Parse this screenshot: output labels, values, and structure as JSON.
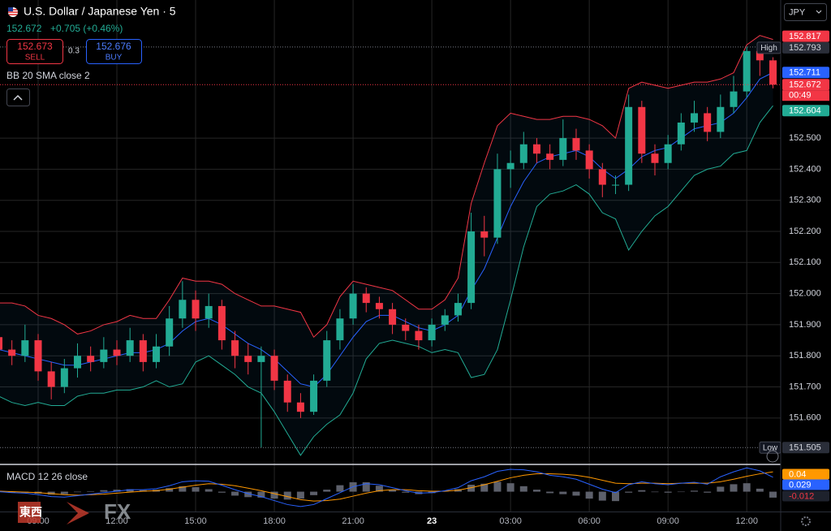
{
  "chart_data": {
    "type": "candlestick",
    "title": "U.S. Dollar / Japanese Yen · 5",
    "change": "+0.705 (+0.46%)",
    "bid": 152.673,
    "bid_label": "SELL",
    "spread": 0.3,
    "ask": 152.676,
    "ask_label": "BUY",
    "currency": "JPY",
    "countdown": "00:49",
    "high_label": "High",
    "low_label": "Low",
    "up_color": "#22ab94",
    "down_color": "#f23645",
    "categories": [
      null,
      null,
      null,
      "09:00",
      null,
      null,
      null,
      null,
      null,
      "12:00",
      null,
      null,
      null,
      null,
      null,
      "15:00",
      null,
      null,
      null,
      null,
      null,
      "18:00",
      null,
      null,
      null,
      null,
      null,
      "21:00",
      null,
      null,
      null,
      null,
      null,
      "23",
      null,
      null,
      null,
      null,
      null,
      "03:00",
      null,
      null,
      null,
      null,
      null,
      "06:00",
      null,
      null,
      null,
      null,
      null,
      "09:00",
      null,
      null,
      null,
      null,
      null,
      "12:00",
      null,
      null
    ],
    "open": [
      151.86,
      151.82,
      151.8,
      151.85,
      151.75,
      151.7,
      151.76,
      151.8,
      151.78,
      151.82,
      151.8,
      151.85,
      151.78,
      151.83,
      151.92,
      151.98,
      151.92,
      151.96,
      151.85,
      151.8,
      151.78,
      151.8,
      151.72,
      151.65,
      151.62,
      151.72,
      151.85,
      151.92,
      152.0,
      151.97,
      151.95,
      151.9,
      151.88,
      151.85,
      151.9,
      151.93,
      151.97,
      152.2,
      152.18,
      152.4,
      152.42,
      152.48,
      152.45,
      152.43,
      152.5,
      152.46,
      152.4,
      152.35,
      152.35,
      152.6,
      152.45,
      152.42,
      152.48,
      152.55,
      152.58,
      152.52,
      152.6,
      152.65,
      152.78,
      152.75
    ],
    "high": [
      151.89,
      151.85,
      151.9,
      151.87,
      151.78,
      151.79,
      151.84,
      151.83,
      151.86,
      151.85,
      151.89,
      151.87,
      151.87,
      151.96,
      152.04,
      152.01,
      152.0,
      151.98,
      151.88,
      151.84,
      151.83,
      151.82,
      151.74,
      151.68,
      151.74,
      151.88,
      151.95,
      152.03,
      152.02,
      151.99,
      151.97,
      151.92,
      151.9,
      151.92,
      151.95,
      152.0,
      152.26,
      152.25,
      152.45,
      152.46,
      152.52,
      152.5,
      152.48,
      152.56,
      152.53,
      152.48,
      152.42,
      152.38,
      152.64,
      152.62,
      152.48,
      152.51,
      152.58,
      152.62,
      152.6,
      152.64,
      152.7,
      152.793,
      152.79,
      152.76
    ],
    "low": [
      151.72,
      151.77,
      151.78,
      151.72,
      151.66,
      151.68,
      151.73,
      151.75,
      151.76,
      151.77,
      151.78,
      151.75,
      151.76,
      151.8,
      151.89,
      151.88,
      151.89,
      151.82,
      151.76,
      151.74,
      151.505,
      151.69,
      151.62,
      151.6,
      151.61,
      151.7,
      151.82,
      151.9,
      151.94,
      151.92,
      151.87,
      151.85,
      151.82,
      151.83,
      151.88,
      151.91,
      151.95,
      152.12,
      152.16,
      152.34,
      152.4,
      152.42,
      152.4,
      152.41,
      152.43,
      152.37,
      152.31,
      152.32,
      152.33,
      152.42,
      152.38,
      152.4,
      152.46,
      152.52,
      152.49,
      152.5,
      152.58,
      152.63,
      152.7,
      152.66
    ],
    "close": [
      151.82,
      151.8,
      151.85,
      151.75,
      151.7,
      151.76,
      151.8,
      151.78,
      151.82,
      151.8,
      151.85,
      151.78,
      151.83,
      151.92,
      151.98,
      151.92,
      151.96,
      151.85,
      151.8,
      151.78,
      151.8,
      151.72,
      151.65,
      151.62,
      151.72,
      151.85,
      151.92,
      152.0,
      151.97,
      151.95,
      151.9,
      151.88,
      151.85,
      151.9,
      151.93,
      151.97,
      152.2,
      152.18,
      152.4,
      152.42,
      152.48,
      152.45,
      152.43,
      152.5,
      152.46,
      152.4,
      152.35,
      152.35,
      152.6,
      152.45,
      152.42,
      152.48,
      152.55,
      152.58,
      152.52,
      152.6,
      152.65,
      152.78,
      152.75,
      152.672
    ],
    "bands": {
      "name": "BB 20 SMA close 2",
      "upper_color": "#f23645",
      "middle_color": "#2962ff",
      "lower_color": "#22ab94",
      "upper": [
        151.97,
        151.97,
        151.96,
        151.93,
        151.92,
        151.9,
        151.87,
        151.88,
        151.9,
        151.91,
        151.93,
        151.92,
        151.92,
        151.98,
        152.05,
        152.04,
        152.04,
        152.03,
        152.0,
        151.98,
        151.96,
        151.96,
        151.95,
        151.94,
        151.86,
        151.9,
        151.99,
        152.04,
        152.03,
        152.02,
        152.01,
        151.98,
        151.95,
        151.95,
        151.98,
        152.05,
        152.29,
        152.42,
        152.54,
        152.58,
        152.57,
        152.56,
        152.56,
        152.57,
        152.57,
        152.56,
        152.54,
        152.5,
        152.66,
        152.68,
        152.67,
        152.66,
        152.67,
        152.68,
        152.68,
        152.69,
        152.71,
        152.8,
        152.83,
        152.817
      ],
      "middle": [
        151.82,
        151.81,
        151.8,
        151.79,
        151.78,
        151.77,
        151.77,
        151.78,
        151.79,
        151.8,
        151.81,
        151.81,
        151.82,
        151.84,
        151.88,
        151.91,
        151.92,
        151.9,
        151.87,
        151.84,
        151.82,
        151.79,
        151.75,
        151.71,
        151.7,
        151.74,
        151.8,
        151.86,
        151.91,
        151.93,
        151.93,
        151.91,
        151.89,
        151.88,
        151.9,
        151.93,
        152.01,
        152.08,
        152.18,
        152.28,
        152.36,
        152.42,
        152.44,
        152.45,
        152.46,
        152.44,
        152.4,
        152.37,
        152.4,
        152.44,
        152.46,
        152.47,
        152.5,
        152.53,
        152.54,
        152.55,
        152.58,
        152.63,
        152.69,
        152.711
      ],
      "lower": [
        151.67,
        151.65,
        151.64,
        151.65,
        151.64,
        151.64,
        151.67,
        151.68,
        151.68,
        151.69,
        151.69,
        151.7,
        151.72,
        151.7,
        151.71,
        151.78,
        151.8,
        151.77,
        151.74,
        151.7,
        151.68,
        151.62,
        151.55,
        151.48,
        151.54,
        151.58,
        151.61,
        151.68,
        151.79,
        151.84,
        151.85,
        151.84,
        151.83,
        151.81,
        151.82,
        151.81,
        151.73,
        151.74,
        151.82,
        151.98,
        152.15,
        152.28,
        152.32,
        152.33,
        152.35,
        152.32,
        152.26,
        152.24,
        152.14,
        152.2,
        152.25,
        152.28,
        152.33,
        152.38,
        152.4,
        152.41,
        152.45,
        152.46,
        152.55,
        152.604
      ]
    },
    "ylim": [
      151.456,
      152.944
    ],
    "yticks": [
      {
        "value": 151.6,
        "label": "151.600"
      },
      {
        "value": 151.7,
        "label": "151.700"
      },
      {
        "value": 151.8,
        "label": "151.800"
      },
      {
        "value": 151.9,
        "label": "151.900"
      },
      {
        "value": 152.0,
        "label": "152.000"
      },
      {
        "value": 152.1,
        "label": "152.100"
      },
      {
        "value": 152.2,
        "label": "152.200"
      },
      {
        "value": 152.3,
        "label": "152.300"
      },
      {
        "value": 152.4,
        "label": "152.400"
      },
      {
        "value": 152.5,
        "label": "152.500"
      }
    ],
    "macd": {
      "name": "MACD 12 26 close",
      "ylim": [
        -0.04,
        0.05
      ],
      "macd_color": "#2962ff",
      "signal_color": "#ff9800",
      "histogram_color": "#5d606b",
      "macd": [
        0.0,
        -0.002,
        -0.003,
        -0.006,
        -0.01,
        -0.011,
        -0.008,
        -0.005,
        -0.002,
        0.001,
        0.004,
        0.004,
        0.006,
        0.012,
        0.02,
        0.022,
        0.021,
        0.013,
        0.004,
        -0.004,
        -0.01,
        -0.018,
        -0.026,
        -0.03,
        -0.026,
        -0.014,
        -0.002,
        0.01,
        0.016,
        0.014,
        0.008,
        0.002,
        -0.003,
        -0.002,
        0.002,
        0.008,
        0.022,
        0.03,
        0.041,
        0.045,
        0.044,
        0.04,
        0.033,
        0.03,
        0.025,
        0.015,
        0.005,
        -0.002,
        0.014,
        0.02,
        0.016,
        0.014,
        0.017,
        0.019,
        0.015,
        0.03,
        0.04,
        0.048,
        0.042,
        0.029
      ],
      "signal": [
        0.001,
        0.0,
        -0.001,
        -0.002,
        -0.004,
        -0.006,
        -0.007,
        -0.006,
        -0.005,
        -0.003,
        -0.001,
        0.001,
        0.002,
        0.005,
        0.009,
        0.013,
        0.016,
        0.015,
        0.012,
        0.007,
        0.002,
        -0.004,
        -0.01,
        -0.016,
        -0.019,
        -0.018,
        -0.015,
        -0.009,
        -0.003,
        0.002,
        0.004,
        0.004,
        0.002,
        0.001,
        0.001,
        0.003,
        0.008,
        0.014,
        0.021,
        0.028,
        0.033,
        0.036,
        0.036,
        0.035,
        0.033,
        0.029,
        0.023,
        0.017,
        0.016,
        0.017,
        0.017,
        0.016,
        0.017,
        0.017,
        0.017,
        0.02,
        0.025,
        0.031,
        0.036,
        0.04
      ],
      "histogram": [
        -0.001,
        -0.002,
        -0.002,
        -0.004,
        -0.006,
        -0.005,
        -0.001,
        0.001,
        0.003,
        0.004,
        0.005,
        0.003,
        0.004,
        0.007,
        0.011,
        0.009,
        0.005,
        -0.002,
        -0.008,
        -0.011,
        -0.012,
        -0.014,
        -0.016,
        -0.014,
        -0.007,
        0.004,
        0.013,
        0.019,
        0.019,
        0.012,
        0.004,
        -0.002,
        -0.005,
        -0.003,
        0.001,
        0.005,
        0.014,
        0.016,
        0.02,
        0.017,
        0.011,
        0.004,
        -0.003,
        -0.005,
        -0.008,
        -0.014,
        -0.018,
        -0.019,
        -0.002,
        0.003,
        -0.001,
        -0.002,
        0.0,
        0.002,
        -0.002,
        0.01,
        0.015,
        0.017,
        0.006,
        -0.012
      ]
    },
    "watermark": [
      "東西",
      "FX"
    ]
  }
}
